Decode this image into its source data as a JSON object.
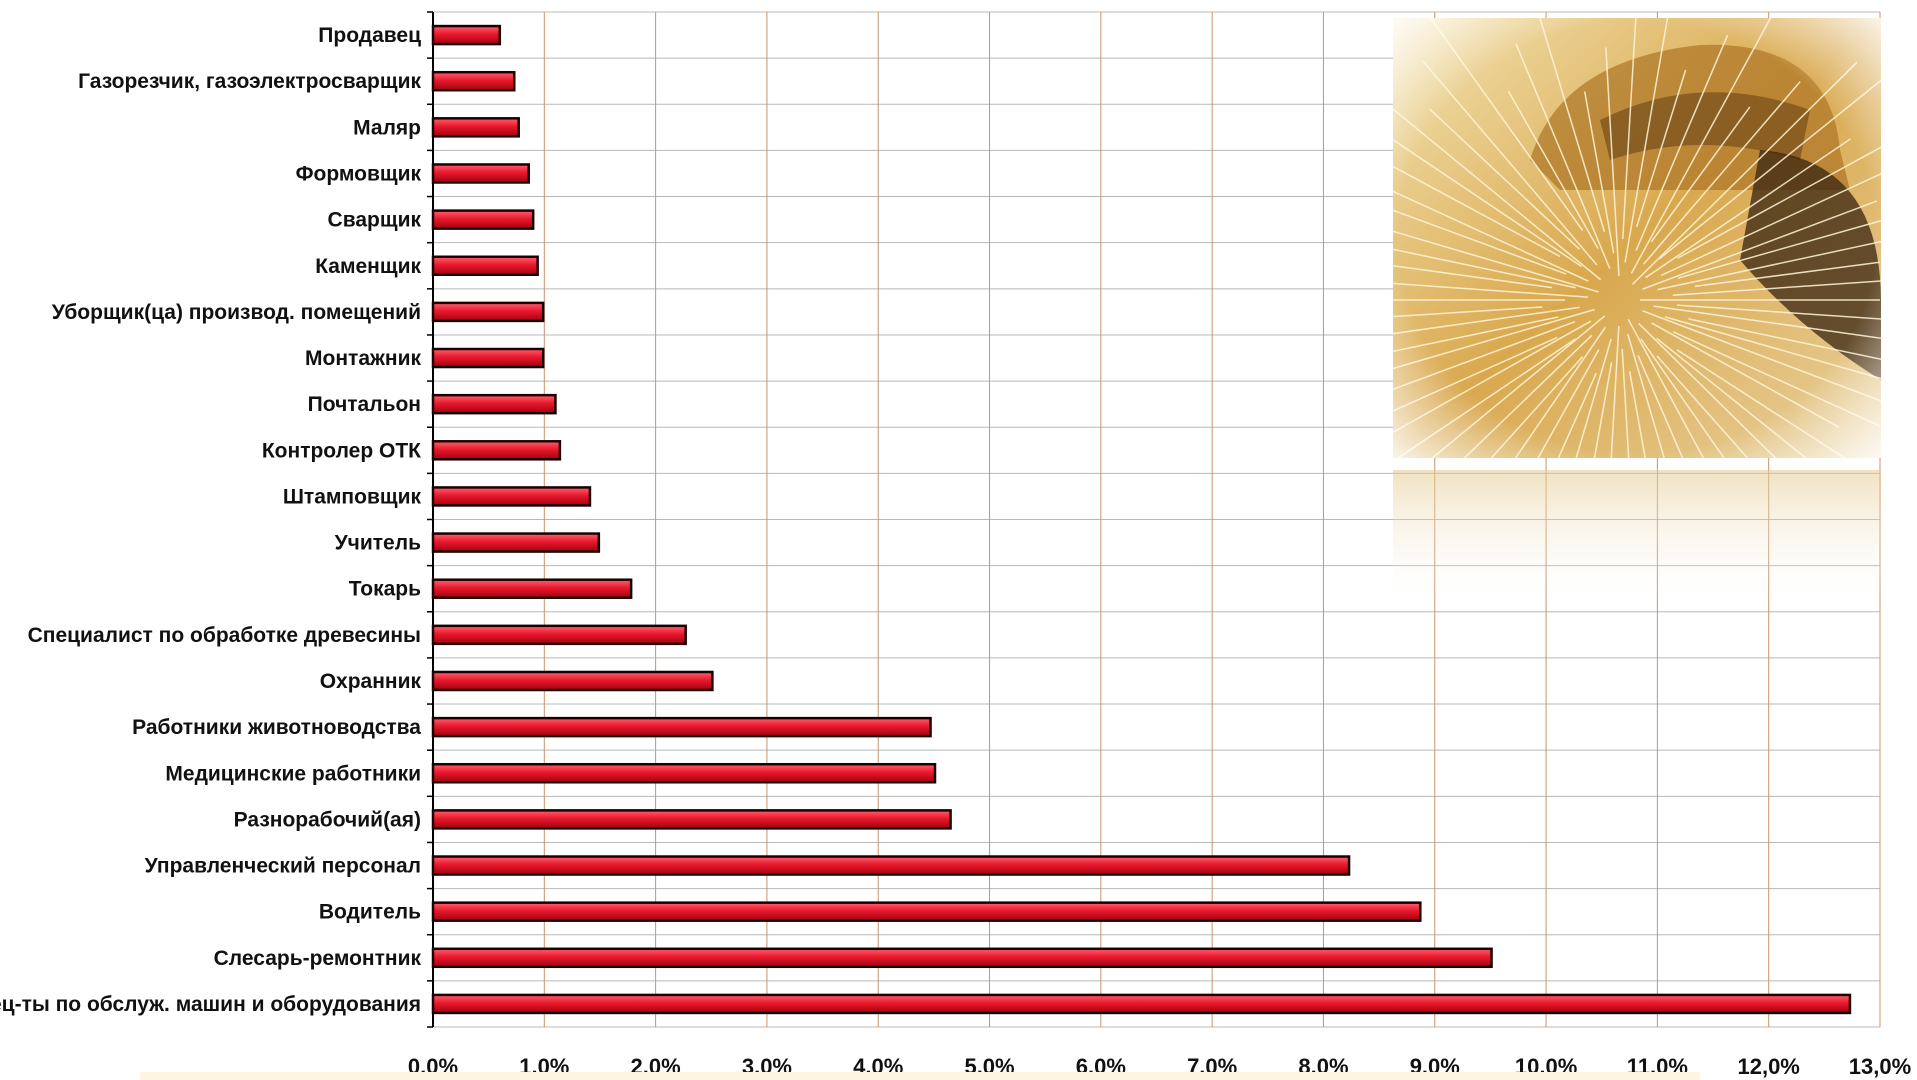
{
  "chart_data": {
    "type": "bar",
    "orientation": "horizontal",
    "title": "",
    "xlabel": "",
    "ylabel": "",
    "xlim": [
      0,
      13
    ],
    "grid": true,
    "legend": "none",
    "categories": [
      "Продавец",
      "Газорезчик, газоэлектросварщик",
      "Маляр",
      "Формовщик",
      "Сварщик",
      "Каменщик",
      "Уборщик(ца)  производ. помещений",
      "Монтажник",
      "Почтальон",
      "Контролер ОТК",
      "Штамповщик",
      "Учитель",
      "Токарь",
      "Специалист по обработке древесины",
      "Охранник",
      "Работники животноводства",
      "Медицинские работники",
      "Разнорабочий(ая)",
      "Управленческий персонал",
      "Водитель",
      "Слесарь-ремонтник",
      "Спец-ты по обслуж. машин и оборудования"
    ],
    "values": [
      0.6,
      0.73,
      0.77,
      0.86,
      0.9,
      0.94,
      0.99,
      0.99,
      1.1,
      1.14,
      1.41,
      1.49,
      1.78,
      2.27,
      2.51,
      4.47,
      4.51,
      4.65,
      8.23,
      8.87,
      9.51,
      12.73
    ],
    "tick_labels": [
      "0.0%",
      "1.0%",
      "2.0%",
      "3.0%",
      "4.0%",
      "5.0%",
      "6.0%",
      "7.0%",
      "8.0%",
      "9.0%",
      "10.0%",
      "11,0%",
      "12,0%",
      "13,0%"
    ],
    "colors": {
      "bar_fill": "#e8192c",
      "bar_outline": "#1a0000",
      "grid": "#c8946a",
      "hgrid": "#b8b8b8",
      "axis": "#000000"
    },
    "decorative_image": "welder-photo"
  }
}
